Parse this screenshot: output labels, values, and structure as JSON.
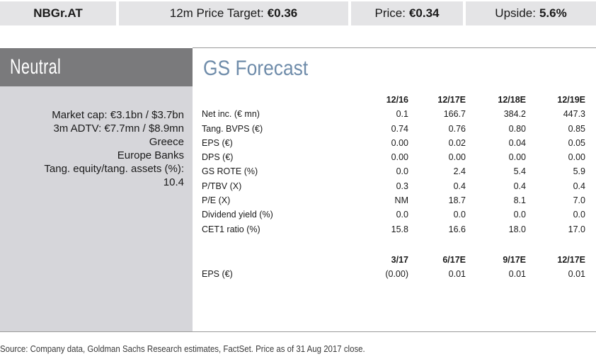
{
  "banner": {
    "ticker": "NBGr.AT",
    "target_label": "12m Price Target:",
    "target_value": "€0.36",
    "price_label": "Price:",
    "price_value": "€0.34",
    "upside_label": "Upside:",
    "upside_value": "5.6%"
  },
  "rating": "Neutral",
  "side": {
    "lines": [
      "Market cap: €3.1bn / $3.7bn",
      "3m ADTV: €7.7mn / $8.9mn",
      "Greece",
      "Europe Banks",
      "Tang. equity/tang. assets (%):",
      "10.4"
    ]
  },
  "forecast": {
    "title": "GS Forecast",
    "annual_headers": [
      "12/16",
      "12/17E",
      "12/18E",
      "12/19E"
    ],
    "annual_rows": [
      {
        "label": "Net inc. (€ mn)",
        "values": [
          "0.1",
          "166.7",
          "384.2",
          "447.3"
        ]
      },
      {
        "label": "Tang. BVPS (€)",
        "values": [
          "0.74",
          "0.76",
          "0.80",
          "0.85"
        ]
      },
      {
        "label": "EPS (€)",
        "values": [
          "0.00",
          "0.02",
          "0.04",
          "0.05"
        ]
      },
      {
        "label": "DPS (€)",
        "values": [
          "0.00",
          "0.00",
          "0.00",
          "0.00"
        ]
      },
      {
        "label": "GS ROTE (%)",
        "values": [
          "0.0",
          "2.4",
          "5.4",
          "5.9"
        ]
      },
      {
        "label": "P/TBV (X)",
        "values": [
          "0.3",
          "0.4",
          "0.4",
          "0.4"
        ]
      },
      {
        "label": "P/E (X)",
        "values": [
          "NM",
          "18.7",
          "8.1",
          "7.0"
        ]
      },
      {
        "label": "Dividend yield (%)",
        "values": [
          "0.0",
          "0.0",
          "0.0",
          "0.0"
        ]
      },
      {
        "label": "CET1 ratio (%)",
        "values": [
          "15.8",
          "16.6",
          "18.0",
          "17.0"
        ]
      }
    ],
    "quarterly_headers": [
      "3/17",
      "6/17E",
      "9/17E",
      "12/17E"
    ],
    "quarterly_rows": [
      {
        "label": "EPS (€)",
        "values": [
          "(0.00)",
          "0.01",
          "0.01",
          "0.01"
        ]
      }
    ]
  },
  "source": "Source: Company data, Goldman Sachs Research estimates, FactSet. Price as of 31 Aug 2017 close."
}
